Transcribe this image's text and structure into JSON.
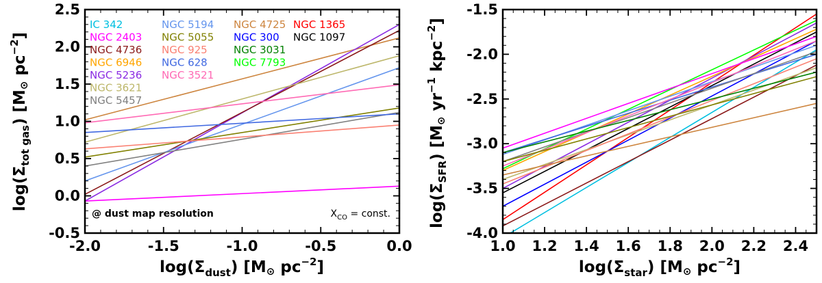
{
  "chart_data": [
    {
      "type": "line",
      "xlabel": "log(Σdust) [M⊙ pc−2]",
      "ylabel": "log(Σtot gas) [M⊙ pc−2]",
      "xlim": [
        -2.0,
        0.0
      ],
      "ylim": [
        -0.5,
        2.5
      ],
      "xticks": [
        "-2.0",
        "-1.5",
        "-1.0",
        "-0.5",
        "0.0"
      ],
      "yticks": [
        "-0.5",
        "0.0",
        "0.5",
        "1.0",
        "1.5",
        "2.0",
        "2.5"
      ],
      "xtick_values": [
        -2.0,
        -1.5,
        -1.0,
        -0.5,
        0.0
      ],
      "ytick_values": [
        -0.5,
        0.0,
        0.5,
        1.0,
        1.5,
        2.0,
        2.5
      ],
      "annotations": {
        "left": "@ dust map resolution",
        "right_prefix": "X",
        "right_sub": "CO",
        "right_suffix": " = const."
      },
      "legend": [
        {
          "name": "IC 342",
          "color": "#00bfe0"
        },
        {
          "name": "NGC 2403",
          "color": "#ff00ff"
        },
        {
          "name": "NGC 4736",
          "color": "#8b1a1a"
        },
        {
          "name": "NGC 6946",
          "color": "#ffa500"
        },
        {
          "name": "NGC 5236",
          "color": "#8a2be2"
        },
        {
          "name": "NGC 3621",
          "color": "#bdb76b"
        },
        {
          "name": "NGC 5457",
          "color": "#808080"
        },
        {
          "name": "NGC 5194",
          "color": "#6495ed"
        },
        {
          "name": "NGC 5055",
          "color": "#808000"
        },
        {
          "name": "NGC 925",
          "color": "#fa8072"
        },
        {
          "name": "NGC 628",
          "color": "#4169e1"
        },
        {
          "name": "NGC 3521",
          "color": "#ff69b4"
        },
        {
          "name": "NGC 4725",
          "color": "#cd853f"
        },
        {
          "name": "NGC 300",
          "color": "#0000ff"
        },
        {
          "name": "NGC 3031",
          "color": "#008000"
        },
        {
          "name": "NGC 7793",
          "color": "#00ff00"
        },
        {
          "name": "NGC 1365",
          "color": "#ff0000"
        },
        {
          "name": "NGC 1097",
          "color": "#000000"
        }
      ],
      "series": [
        {
          "name": "NGC 4725",
          "color": "#cd853f",
          "x": [
            -2.0,
            0.0
          ],
          "y": [
            1.02,
            2.12
          ]
        },
        {
          "name": "NGC 5236",
          "color": "#8a2be2",
          "x": [
            -2.0,
            0.0
          ],
          "y": [
            -0.07,
            2.3
          ]
        },
        {
          "name": "NGC 4736",
          "color": "#8b1a1a",
          "x": [
            -2.0,
            0.0
          ],
          "y": [
            0.02,
            2.22
          ]
        },
        {
          "name": "NGC 3621",
          "color": "#bdb76b",
          "x": [
            -2.0,
            0.0
          ],
          "y": [
            0.72,
            1.88
          ]
        },
        {
          "name": "NGC 5194",
          "color": "#6495ed",
          "x": [
            -2.0,
            0.0
          ],
          "y": [
            0.2,
            1.72
          ]
        },
        {
          "name": "NGC 3521",
          "color": "#ff69b4",
          "x": [
            -2.0,
            0.0
          ],
          "y": [
            0.98,
            1.49
          ]
        },
        {
          "name": "NGC 5055",
          "color": "#808000",
          "x": [
            -2.0,
            0.0
          ],
          "y": [
            0.52,
            1.18
          ]
        },
        {
          "name": "NGC 5457",
          "color": "#808080",
          "x": [
            -2.0,
            0.0
          ],
          "y": [
            0.4,
            1.12
          ]
        },
        {
          "name": "NGC 628",
          "color": "#4169e1",
          "x": [
            -2.0,
            0.0
          ],
          "y": [
            0.85,
            1.1
          ]
        },
        {
          "name": "NGC 925",
          "color": "#fa8072",
          "x": [
            -2.0,
            0.0
          ],
          "y": [
            0.63,
            0.95
          ]
        },
        {
          "name": "NGC 2403",
          "color": "#ff00ff",
          "x": [
            -2.0,
            0.0
          ],
          "y": [
            -0.07,
            0.13
          ]
        }
      ]
    },
    {
      "type": "line",
      "xlabel": "log(Σstar) [M⊙ pc−2]",
      "ylabel": "log(ΣSFR) [M⊙ yr−1 kpc−2]",
      "xlim": [
        1.0,
        2.5
      ],
      "ylim": [
        -4.0,
        -1.5
      ],
      "xticks": [
        "1.0",
        "1.2",
        "1.4",
        "1.6",
        "1.8",
        "2.0",
        "2.2",
        "2.4"
      ],
      "yticks": [
        "-4.0",
        "-3.5",
        "-3.0",
        "-2.5",
        "-2.0",
        "-1.5"
      ],
      "xtick_values": [
        1.0,
        1.2,
        1.4,
        1.6,
        1.8,
        2.0,
        2.2,
        2.4
      ],
      "ytick_values": [
        -4.0,
        -3.5,
        -3.0,
        -2.5,
        -2.0,
        -1.5
      ],
      "series": [
        {
          "name": "NGC 1365",
          "color": "#ff0000",
          "x": [
            1.0,
            2.5
          ],
          "y": [
            -3.85,
            -1.55
          ]
        },
        {
          "name": "IC 342",
          "color": "#00bfe0",
          "x": [
            1.0,
            2.5
          ],
          "y": [
            -4.05,
            -1.95
          ]
        },
        {
          "name": "NGC 4736",
          "color": "#8b1a1a",
          "x": [
            1.0,
            2.5
          ],
          "y": [
            -3.92,
            -2.12
          ]
        },
        {
          "name": "NGC 300",
          "color": "#0000ff",
          "x": [
            1.0,
            2.5
          ],
          "y": [
            -3.7,
            -1.85
          ]
        },
        {
          "name": "NGC 1097",
          "color": "#000000",
          "x": [
            1.0,
            2.5
          ],
          "y": [
            -3.55,
            -1.75
          ]
        },
        {
          "name": "NGC 5236",
          "color": "#8a2be2",
          "x": [
            1.0,
            2.5
          ],
          "y": [
            -3.5,
            -1.65
          ]
        },
        {
          "name": "NGC 6946",
          "color": "#ffa500",
          "x": [
            1.0,
            2.5
          ],
          "y": [
            -3.3,
            -1.72
          ]
        },
        {
          "name": "NGC 7793",
          "color": "#00ff00",
          "x": [
            1.0,
            2.5
          ],
          "y": [
            -3.28,
            -1.62
          ]
        },
        {
          "name": "NGC 2403",
          "color": "#ff00ff",
          "x": [
            1.0,
            2.5
          ],
          "y": [
            -3.05,
            -1.8
          ]
        },
        {
          "name": "NGC 5194",
          "color": "#6495ed",
          "x": [
            1.0,
            2.5
          ],
          "y": [
            -3.12,
            -1.9
          ]
        },
        {
          "name": "NGC 628",
          "color": "#4169e1",
          "x": [
            1.0,
            2.5
          ],
          "y": [
            -3.1,
            -2.0
          ]
        },
        {
          "name": "NGC 5457",
          "color": "#808080",
          "x": [
            1.0,
            2.5
          ],
          "y": [
            -3.2,
            -1.97
          ]
        },
        {
          "name": "NGC 3521",
          "color": "#ff69b4",
          "x": [
            1.0,
            2.5
          ],
          "y": [
            -3.25,
            -1.85
          ]
        },
        {
          "name": "NGC 3621",
          "color": "#bdb76b",
          "x": [
            1.0,
            2.5
          ],
          "y": [
            -3.4,
            -2.15
          ]
        },
        {
          "name": "NGC 925",
          "color": "#fa8072",
          "x": [
            1.0,
            2.5
          ],
          "y": [
            -3.45,
            -2.05
          ]
        },
        {
          "name": "NGC 5055",
          "color": "#808000",
          "x": [
            1.0,
            2.5
          ],
          "y": [
            -3.2,
            -2.25
          ]
        },
        {
          "name": "NGC 3031",
          "color": "#008000",
          "x": [
            1.0,
            2.5
          ],
          "y": [
            -3.1,
            -2.2
          ]
        },
        {
          "name": "NGC 4725",
          "color": "#cd853f",
          "x": [
            1.0,
            2.5
          ],
          "y": [
            -3.35,
            -2.55
          ]
        }
      ]
    }
  ]
}
